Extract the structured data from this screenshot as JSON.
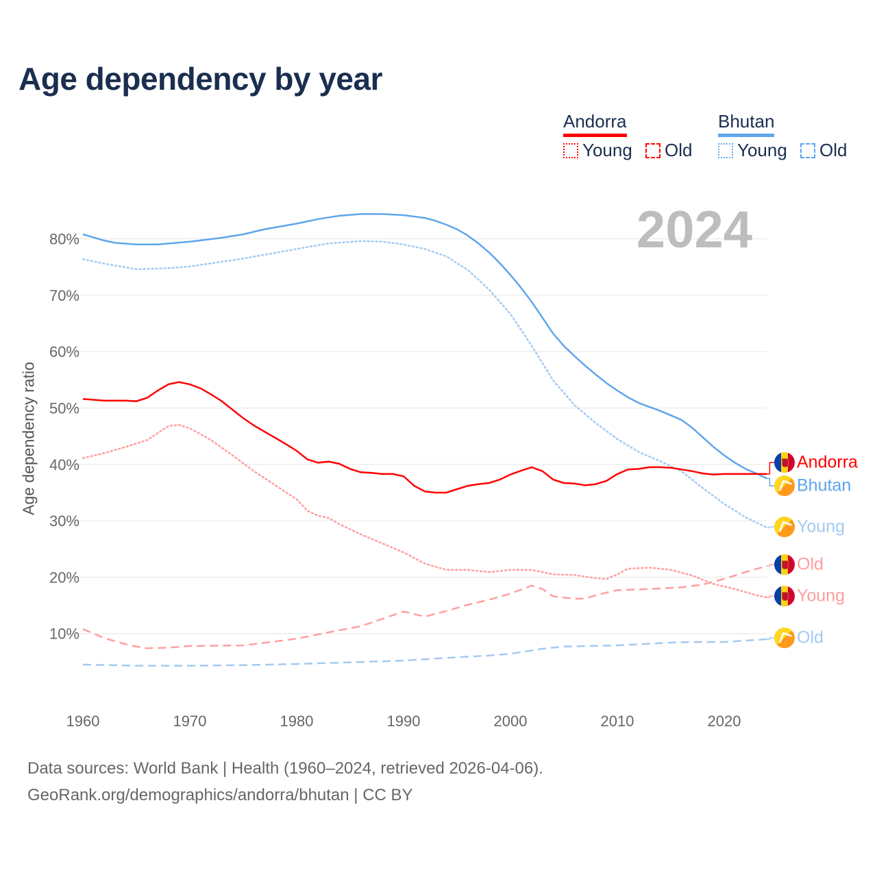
{
  "title": "Age dependency by year",
  "year": "2024",
  "legend": {
    "andorra": "Andorra",
    "bhutan": "Bhutan",
    "young": "Young",
    "old": "Old"
  },
  "footer": {
    "line1": "Data sources: World Bank | Health (1960–2024, retrieved 2026-04-06).",
    "line2": "GeoRank.org/demographics/andorra/bhutan | CC BY"
  },
  "colors": {
    "andorra": "#ff0000",
    "bhutan": "#5ea5ec",
    "andorra_light": "#ff9e9e",
    "bhutan_light": "#a3c9f1"
  },
  "chart_data": {
    "type": "line",
    "title": "Age dependency by year",
    "xlabel": "",
    "ylabel": "Age dependency ratio",
    "xlim": [
      1960,
      2024
    ],
    "ylim": [
      0,
      85
    ],
    "x_ticks": [
      "1960",
      "1970",
      "1980",
      "1990",
      "2000",
      "2010",
      "2020"
    ],
    "y_ticks": [
      "10%",
      "20%",
      "30%",
      "40%",
      "50%",
      "60%",
      "70%",
      "80%"
    ],
    "y_tick_values": [
      10,
      20,
      30,
      40,
      50,
      60,
      70,
      80
    ],
    "grid": true,
    "legend_position": "top-right",
    "series": [
      {
        "name": "Bhutan",
        "label": "Bhutan",
        "country": "bhutan",
        "style": "solid",
        "points": [
          [
            1960,
            80.8
          ],
          [
            1962,
            79.7
          ],
          [
            1963,
            79.3
          ],
          [
            1965,
            79.0
          ],
          [
            1967,
            79.0
          ],
          [
            1970,
            79.5
          ],
          [
            1973,
            80.2
          ],
          [
            1975,
            80.8
          ],
          [
            1977,
            81.7
          ],
          [
            1980,
            82.7
          ],
          [
            1982,
            83.5
          ],
          [
            1984,
            84.1
          ],
          [
            1986,
            84.4
          ],
          [
            1988,
            84.4
          ],
          [
            1990,
            84.2
          ],
          [
            1992,
            83.7
          ],
          [
            1993,
            83.2
          ],
          [
            1994,
            82.5
          ],
          [
            1995,
            81.7
          ],
          [
            1996,
            80.6
          ],
          [
            1997,
            79.2
          ],
          [
            1998,
            77.6
          ],
          [
            1999,
            75.7
          ],
          [
            2000,
            73.6
          ],
          [
            2001,
            71.3
          ],
          [
            2002,
            68.8
          ],
          [
            2003,
            66.0
          ],
          [
            2004,
            63.2
          ],
          [
            2005,
            61.0
          ],
          [
            2006,
            59.2
          ],
          [
            2007,
            57.5
          ],
          [
            2008,
            55.9
          ],
          [
            2009,
            54.4
          ],
          [
            2010,
            53.1
          ],
          [
            2011,
            51.9
          ],
          [
            2012,
            50.9
          ],
          [
            2013,
            50.2
          ],
          [
            2014,
            49.5
          ],
          [
            2015,
            48.7
          ],
          [
            2016,
            47.9
          ],
          [
            2017,
            46.5
          ],
          [
            2018,
            44.8
          ],
          [
            2019,
            43.1
          ],
          [
            2020,
            41.6
          ],
          [
            2021,
            40.3
          ],
          [
            2022,
            39.2
          ],
          [
            2023,
            38.4
          ],
          [
            2024,
            37.5
          ]
        ]
      },
      {
        "name": "Bhutan Young",
        "label": "Young",
        "country": "bhutan",
        "style": "dotted",
        "points": [
          [
            1960,
            76.4
          ],
          [
            1962,
            75.6
          ],
          [
            1965,
            74.6
          ],
          [
            1968,
            74.8
          ],
          [
            1970,
            75.1
          ],
          [
            1975,
            76.5
          ],
          [
            1980,
            78.2
          ],
          [
            1983,
            79.2
          ],
          [
            1986,
            79.6
          ],
          [
            1988,
            79.5
          ],
          [
            1990,
            79.0
          ],
          [
            1992,
            78.2
          ],
          [
            1994,
            76.9
          ],
          [
            1996,
            74.5
          ],
          [
            1998,
            71.0
          ],
          [
            2000,
            66.7
          ],
          [
            2002,
            61.0
          ],
          [
            2004,
            54.9
          ],
          [
            2006,
            50.5
          ],
          [
            2008,
            47.3
          ],
          [
            2010,
            44.5
          ],
          [
            2012,
            42.2
          ],
          [
            2014,
            40.6
          ],
          [
            2016,
            38.8
          ],
          [
            2018,
            35.8
          ],
          [
            2020,
            33.0
          ],
          [
            2022,
            30.6
          ],
          [
            2024,
            28.8
          ]
        ]
      },
      {
        "name": "Bhutan Old",
        "label": "Old",
        "country": "bhutan",
        "style": "dashed",
        "points": [
          [
            1960,
            4.5
          ],
          [
            1965,
            4.3
          ],
          [
            1970,
            4.3
          ],
          [
            1975,
            4.4
          ],
          [
            1980,
            4.6
          ],
          [
            1985,
            4.9
          ],
          [
            1990,
            5.2
          ],
          [
            1995,
            5.8
          ],
          [
            1998,
            6.1
          ],
          [
            2000,
            6.4
          ],
          [
            2003,
            7.3
          ],
          [
            2005,
            7.7
          ],
          [
            2010,
            7.9
          ],
          [
            2015,
            8.4
          ],
          [
            2017,
            8.5
          ],
          [
            2020,
            8.5
          ],
          [
            2024,
            9.0
          ]
        ]
      },
      {
        "name": "Andorra",
        "label": "Andorra",
        "country": "andorra",
        "style": "solid",
        "points": [
          [
            1960,
            51.6
          ],
          [
            1962,
            51.3
          ],
          [
            1964,
            51.3
          ],
          [
            1965,
            51.2
          ],
          [
            1966,
            51.8
          ],
          [
            1967,
            53.1
          ],
          [
            1968,
            54.2
          ],
          [
            1969,
            54.6
          ],
          [
            1970,
            54.2
          ],
          [
            1971,
            53.5
          ],
          [
            1972,
            52.4
          ],
          [
            1973,
            51.2
          ],
          [
            1974,
            49.7
          ],
          [
            1975,
            48.2
          ],
          [
            1976,
            46.9
          ],
          [
            1977,
            45.8
          ],
          [
            1978,
            44.7
          ],
          [
            1979,
            43.6
          ],
          [
            1980,
            42.4
          ],
          [
            1981,
            40.9
          ],
          [
            1982,
            40.3
          ],
          [
            1983,
            40.5
          ],
          [
            1984,
            40.1
          ],
          [
            1985,
            39.2
          ],
          [
            1986,
            38.6
          ],
          [
            1987,
            38.5
          ],
          [
            1988,
            38.3
          ],
          [
            1989,
            38.3
          ],
          [
            1990,
            37.9
          ],
          [
            1991,
            36.2
          ],
          [
            1992,
            35.2
          ],
          [
            1993,
            35.0
          ],
          [
            1994,
            35.0
          ],
          [
            1995,
            35.6
          ],
          [
            1996,
            36.2
          ],
          [
            1997,
            36.5
          ],
          [
            1998,
            36.7
          ],
          [
            1999,
            37.3
          ],
          [
            2000,
            38.2
          ],
          [
            2001,
            38.9
          ],
          [
            2002,
            39.5
          ],
          [
            2003,
            38.8
          ],
          [
            2004,
            37.3
          ],
          [
            2005,
            36.7
          ],
          [
            2006,
            36.6
          ],
          [
            2007,
            36.3
          ],
          [
            2008,
            36.5
          ],
          [
            2009,
            37.1
          ],
          [
            2010,
            38.3
          ],
          [
            2011,
            39.1
          ],
          [
            2012,
            39.2
          ],
          [
            2013,
            39.5
          ],
          [
            2014,
            39.5
          ],
          [
            2015,
            39.4
          ],
          [
            2016,
            39.1
          ],
          [
            2017,
            38.8
          ],
          [
            2018,
            38.4
          ],
          [
            2019,
            38.2
          ],
          [
            2020,
            38.3
          ],
          [
            2022,
            38.3
          ],
          [
            2024,
            38.3
          ]
        ]
      },
      {
        "name": "Andorra Young",
        "label": "Young",
        "country": "andorra",
        "style": "dotted",
        "points": [
          [
            1960,
            41.1
          ],
          [
            1962,
            42.0
          ],
          [
            1964,
            43.1
          ],
          [
            1966,
            44.3
          ],
          [
            1968,
            46.8
          ],
          [
            1969,
            47.0
          ],
          [
            1970,
            46.4
          ],
          [
            1972,
            44.3
          ],
          [
            1974,
            41.6
          ],
          [
            1976,
            38.8
          ],
          [
            1978,
            36.3
          ],
          [
            1980,
            33.8
          ],
          [
            1981,
            31.8
          ],
          [
            1982,
            30.9
          ],
          [
            1983,
            30.5
          ],
          [
            1984,
            29.4
          ],
          [
            1986,
            27.6
          ],
          [
            1988,
            26.0
          ],
          [
            1990,
            24.4
          ],
          [
            1992,
            22.4
          ],
          [
            1994,
            21.3
          ],
          [
            1996,
            21.3
          ],
          [
            1998,
            20.9
          ],
          [
            2000,
            21.3
          ],
          [
            2002,
            21.3
          ],
          [
            2004,
            20.5
          ],
          [
            2006,
            20.4
          ],
          [
            2008,
            19.8
          ],
          [
            2009,
            19.7
          ],
          [
            2010,
            20.5
          ],
          [
            2011,
            21.5
          ],
          [
            2013,
            21.7
          ],
          [
            2015,
            21.3
          ],
          [
            2017,
            20.3
          ],
          [
            2019,
            18.8
          ],
          [
            2021,
            17.9
          ],
          [
            2023,
            16.8
          ],
          [
            2024,
            16.4
          ]
        ]
      },
      {
        "name": "Andorra Old",
        "label": "Old",
        "country": "andorra",
        "style": "dashed",
        "points": [
          [
            1960,
            10.8
          ],
          [
            1962,
            9.2
          ],
          [
            1964,
            8.1
          ],
          [
            1965,
            7.7
          ],
          [
            1966,
            7.4
          ],
          [
            1968,
            7.5
          ],
          [
            1970,
            7.8
          ],
          [
            1975,
            7.9
          ],
          [
            1978,
            8.6
          ],
          [
            1980,
            9.1
          ],
          [
            1984,
            10.6
          ],
          [
            1986,
            11.3
          ],
          [
            1988,
            12.6
          ],
          [
            1990,
            13.9
          ],
          [
            1992,
            13.0
          ],
          [
            1994,
            14.0
          ],
          [
            1996,
            15.1
          ],
          [
            1998,
            16.0
          ],
          [
            2000,
            17.1
          ],
          [
            2002,
            18.5
          ],
          [
            2003,
            17.9
          ],
          [
            2004,
            16.6
          ],
          [
            2006,
            16.2
          ],
          [
            2007,
            16.2
          ],
          [
            2008,
            16.8
          ],
          [
            2010,
            17.7
          ],
          [
            2013,
            17.9
          ],
          [
            2016,
            18.2
          ],
          [
            2018,
            18.7
          ],
          [
            2020,
            19.7
          ],
          [
            2022,
            20.9
          ],
          [
            2024,
            22.0
          ]
        ]
      }
    ]
  }
}
